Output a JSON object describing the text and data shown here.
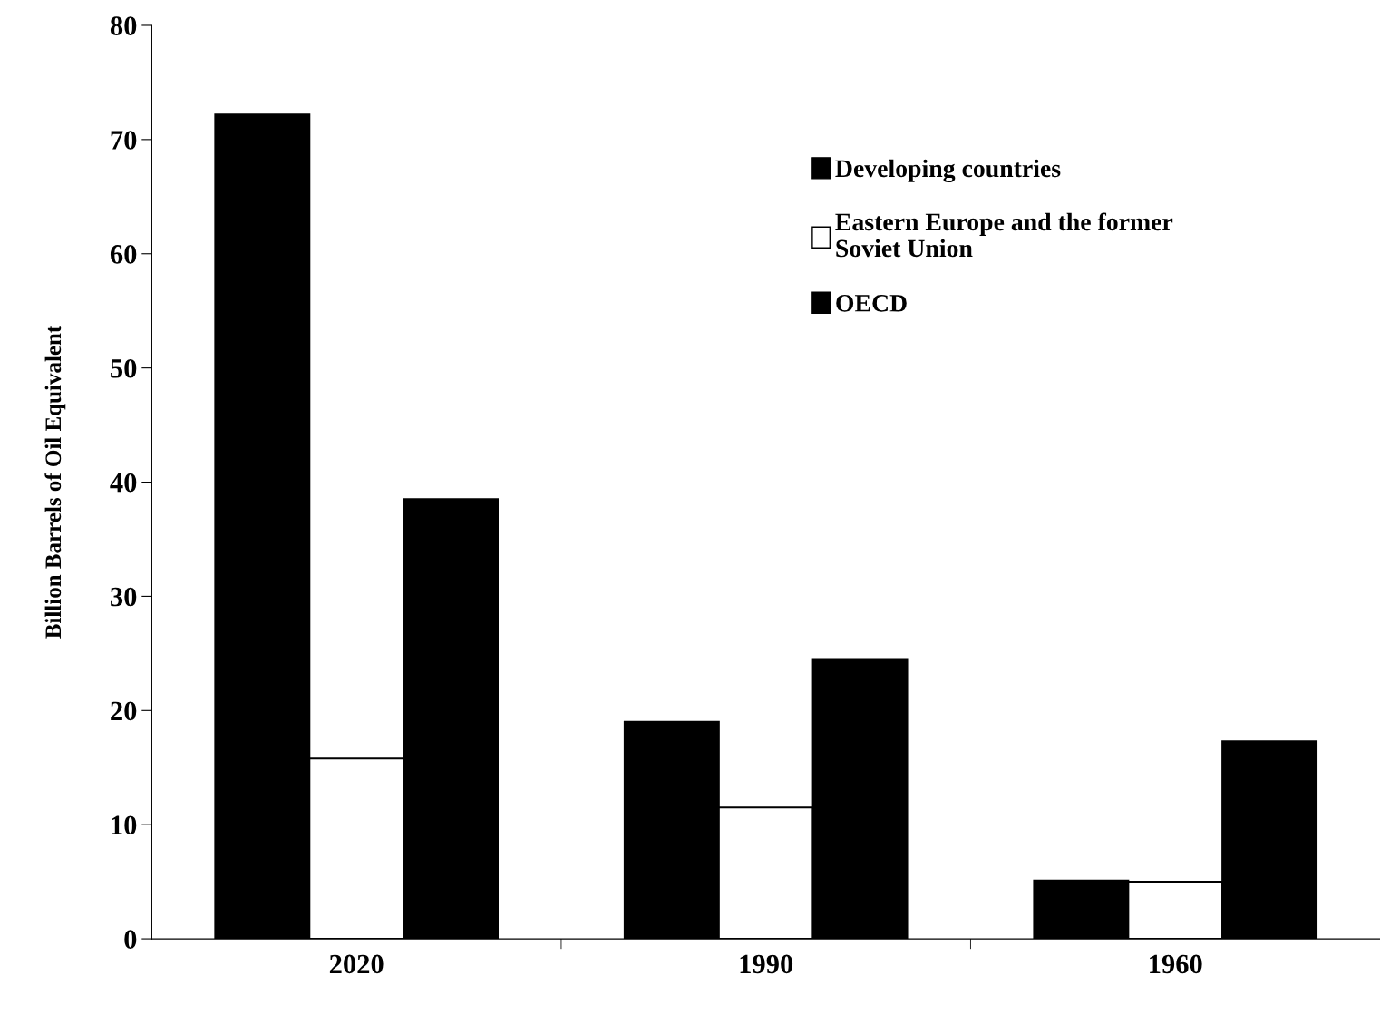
{
  "chart_data": {
    "type": "bar",
    "ylabel": "Billion Barrels of Oil Equivalent",
    "categories": [
      "2020",
      "1990",
      "1960"
    ],
    "series": [
      {
        "name": "Developing countries",
        "color": "#000000",
        "values": [
          72.2,
          19.0,
          5.1
        ]
      },
      {
        "name": "Eastern Europe and the former\nSoviet Union",
        "color": "#ffffff",
        "values": [
          15.8,
          11.5,
          5.0
        ]
      },
      {
        "name": "OECD",
        "color": "#000000",
        "values": [
          38.5,
          24.5,
          17.3
        ]
      }
    ],
    "ylim": [
      0,
      80
    ],
    "yticks": [
      0,
      10,
      20,
      30,
      40,
      50,
      60,
      70,
      80
    ],
    "grid": false,
    "legend": "top right"
  }
}
